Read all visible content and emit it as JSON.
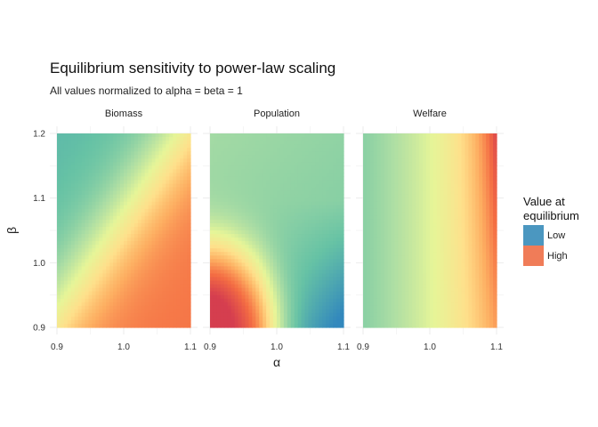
{
  "chart_data": {
    "type": "heatmap",
    "title": "Equilibrium sensitivity to power-law scaling",
    "subtitle": "All values normalized to alpha = beta = 1",
    "xlabel": "α",
    "ylabel": "β",
    "x_ticks": [
      "0.9",
      "1.0",
      "1.1"
    ],
    "y_ticks": [
      "0.9",
      "1.0",
      "1.1",
      "1.2"
    ],
    "xlim": [
      0.9,
      1.1
    ],
    "ylim": [
      0.9,
      1.2
    ],
    "panels": [
      {
        "name": "Biomass",
        "description": "gradient from low (top-left) to high (bottom-right) along diagonal",
        "corner_levels": {
          "alpha_0.9_beta_1.2": 0.05,
          "alpha_1.1_beta_1.2": 0.2,
          "alpha_0.9_beta_0.9": 0.6,
          "alpha_1.1_beta_0.9": 0.85
        }
      },
      {
        "name": "Population",
        "description": "high in bottom-left corner, low in bottom-right, mid-low across top",
        "corner_levels": {
          "alpha_0.9_beta_1.2": 0.2,
          "alpha_1.1_beta_1.2": 0.2,
          "alpha_0.9_beta_0.9": 1.0,
          "alpha_1.1_beta_0.9": 0.0
        }
      },
      {
        "name": "Welfare",
        "description": "increases with alpha, strongest at high alpha and high beta",
        "corner_levels": {
          "alpha_0.9_beta_1.2": 0.3,
          "alpha_1.1_beta_1.2": 0.85,
          "alpha_0.9_beta_0.9": 0.3,
          "alpha_1.1_beta_0.9": 0.55
        }
      }
    ],
    "legend": {
      "title_lines": [
        "Value at",
        "equilibrium"
      ],
      "entries": [
        {
          "label": "Low",
          "color": "#4b97c0"
        },
        {
          "label": "High",
          "color": "#f07c58"
        }
      ],
      "placement": "right"
    },
    "colorscale": [
      "#3288bd",
      "#66c2a5",
      "#abdda4",
      "#e6f598",
      "#fee08b",
      "#fdae61",
      "#f46d43",
      "#d53e4f"
    ]
  }
}
